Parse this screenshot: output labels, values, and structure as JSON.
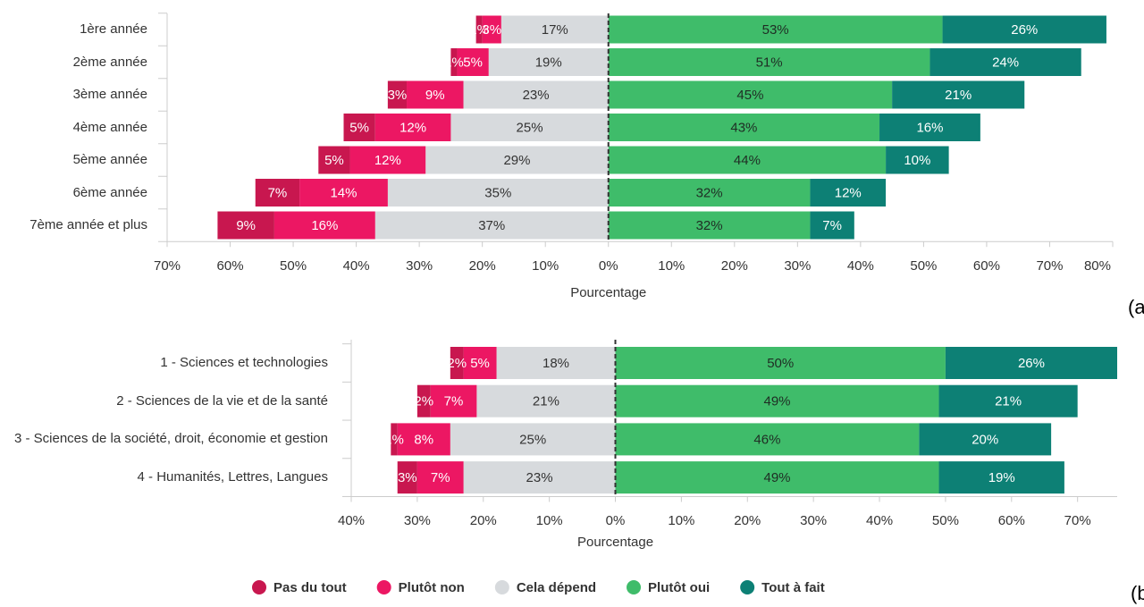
{
  "chart_data": [
    {
      "type": "diverging-bar",
      "panel": "(a)",
      "xlabel": "Pourcentage",
      "categories": [
        "1ère année",
        "2ème année",
        "3ème année",
        "4ème année",
        "5ème année",
        "6ème année",
        "7ème année et plus"
      ],
      "xlim": [
        -70,
        80
      ],
      "xticks": [
        {
          "value": -70,
          "label": "70%"
        },
        {
          "value": -60,
          "label": "60%"
        },
        {
          "value": -50,
          "label": "50%"
        },
        {
          "value": -40,
          "label": "40%"
        },
        {
          "value": -30,
          "label": "30%"
        },
        {
          "value": -20,
          "label": "20%"
        },
        {
          "value": -10,
          "label": "10%"
        },
        {
          "value": 0,
          "label": "0%"
        },
        {
          "value": 10,
          "label": "10%"
        },
        {
          "value": 20,
          "label": "20%"
        },
        {
          "value": 30,
          "label": "30%"
        },
        {
          "value": 40,
          "label": "40%"
        },
        {
          "value": 50,
          "label": "50%"
        },
        {
          "value": 60,
          "label": "60%"
        },
        {
          "value": 70,
          "label": "70%"
        },
        {
          "value": 80,
          "label": "80%"
        }
      ],
      "series": [
        {
          "name": "Pas du tout",
          "color": "#c8174f",
          "label_color": "#ffffff",
          "values": [
            -1,
            -1,
            -3,
            -5,
            -5,
            -7,
            -9
          ],
          "value_labels": [
            "1%",
            "1%",
            "3%",
            "5%",
            "5%",
            "7%",
            "9%"
          ]
        },
        {
          "name": "Plutôt non",
          "color": "#ec1763",
          "label_color": "#ffffff",
          "values": [
            -3,
            -5,
            -9,
            -12,
            -12,
            -14,
            -16
          ],
          "value_labels": [
            "3%",
            "5%",
            "9%",
            "12%",
            "12%",
            "14%",
            "16%"
          ]
        },
        {
          "name": "Cela dépend",
          "color": "#d7dadd",
          "label_color": "#333333",
          "values": [
            -17,
            -19,
            -23,
            -25,
            -29,
            -35,
            -37
          ],
          "value_labels": [
            "17%",
            "19%",
            "23%",
            "25%",
            "29%",
            "35%",
            "37%"
          ]
        },
        {
          "name": "Plutôt oui",
          "color": "#3fbc6a",
          "label_color": "#1f2d24",
          "values": [
            53,
            51,
            45,
            43,
            44,
            32,
            32
          ],
          "value_labels": [
            "53%",
            "51%",
            "45%",
            "43%",
            "44%",
            "32%",
            "32%"
          ]
        },
        {
          "name": "Tout à fait",
          "color": "#0d8075",
          "label_color": "#ffffff",
          "values": [
            26,
            24,
            21,
            16,
            10,
            12,
            7
          ],
          "value_labels": [
            "26%",
            "24%",
            "21%",
            "16%",
            "10%",
            "12%",
            "7%"
          ]
        }
      ]
    },
    {
      "type": "diverging-bar",
      "panel": "(b)",
      "xlabel": "Pourcentage",
      "categories": [
        "1 - Sciences et technologies",
        "2 - Sciences de la vie et de la santé",
        "3 - Sciences de la société, droit, économie et gestion",
        "4 - Humanités, Lettres, Langues"
      ],
      "xlim": [
        -40,
        76
      ],
      "xticks": [
        {
          "value": -40,
          "label": "40%"
        },
        {
          "value": -30,
          "label": "30%"
        },
        {
          "value": -20,
          "label": "20%"
        },
        {
          "value": -10,
          "label": "10%"
        },
        {
          "value": 0,
          "label": "0%"
        },
        {
          "value": 10,
          "label": "10%"
        },
        {
          "value": 20,
          "label": "20%"
        },
        {
          "value": 30,
          "label": "30%"
        },
        {
          "value": 40,
          "label": "40%"
        },
        {
          "value": 50,
          "label": "50%"
        },
        {
          "value": 60,
          "label": "60%"
        },
        {
          "value": 70,
          "label": "70%"
        }
      ],
      "series": [
        {
          "name": "Pas du tout",
          "color": "#c8174f",
          "label_color": "#ffffff",
          "values": [
            -2,
            -2,
            -1,
            -3
          ],
          "value_labels": [
            "2%",
            "2%",
            "1%",
            "3%"
          ]
        },
        {
          "name": "Plutôt non",
          "color": "#ec1763",
          "label_color": "#ffffff",
          "values": [
            -5,
            -7,
            -8,
            -7
          ],
          "value_labels": [
            "5%",
            "7%",
            "8%",
            "7%"
          ]
        },
        {
          "name": "Cela dépend",
          "color": "#d7dadd",
          "label_color": "#333333",
          "values": [
            -18,
            -21,
            -25,
            -23
          ],
          "value_labels": [
            "18%",
            "21%",
            "25%",
            "23%"
          ]
        },
        {
          "name": "Plutôt oui",
          "color": "#3fbc6a",
          "label_color": "#1f2d24",
          "values": [
            50,
            49,
            46,
            49
          ],
          "value_labels": [
            "50%",
            "49%",
            "46%",
            "49%"
          ]
        },
        {
          "name": "Tout à fait",
          "color": "#0d8075",
          "label_color": "#ffffff",
          "values": [
            26,
            21,
            20,
            19
          ],
          "value_labels": [
            "26%",
            "21%",
            "20%",
            "19%"
          ]
        }
      ]
    }
  ]
}
